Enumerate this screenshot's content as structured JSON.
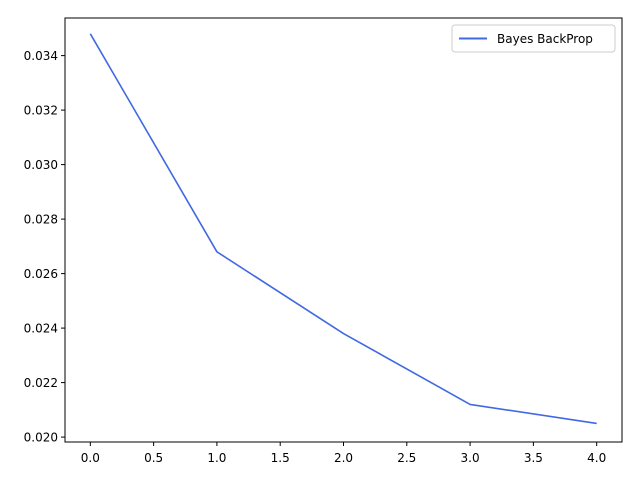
{
  "chart_data": {
    "type": "line",
    "title": "",
    "xlabel": "",
    "ylabel": "",
    "xlim": [
      -0.2,
      4.2
    ],
    "ylim": [
      0.01982,
      0.03538
    ],
    "x_ticks": [
      0.0,
      0.5,
      1.0,
      1.5,
      2.0,
      2.5,
      3.0,
      3.5,
      4.0
    ],
    "x_tick_labels": [
      "0.0",
      "0.5",
      "1.0",
      "1.5",
      "2.0",
      "2.5",
      "3.0",
      "3.5",
      "4.0"
    ],
    "y_ticks": [
      0.02,
      0.022,
      0.024,
      0.026,
      0.028,
      0.03,
      0.032,
      0.034
    ],
    "y_tick_labels": [
      "0.020",
      "0.022",
      "0.024",
      "0.026",
      "0.028",
      "0.030",
      "0.032",
      "0.034"
    ],
    "grid": false,
    "legend_placement": "top-right",
    "series": [
      {
        "name": "Bayes BackProp",
        "color": "#4169e1",
        "x": [
          0,
          1,
          2,
          3,
          4
        ],
        "y": [
          0.0348,
          0.0268,
          0.0238,
          0.0212,
          0.0205
        ]
      }
    ]
  }
}
